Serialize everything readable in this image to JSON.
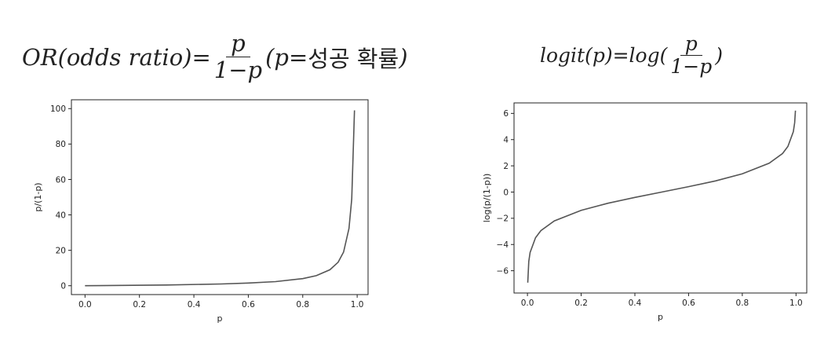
{
  "formulas": {
    "left": {
      "lhs": "OR(odds ratio)=",
      "num": "p",
      "den": "1−p",
      "tail_open": "(p=",
      "tail_kr": "성공 확률",
      "tail_close": ")"
    },
    "right": {
      "lhs": "logit(p)=log(",
      "num": "p",
      "den": "1−p",
      "tail_close": ")"
    }
  },
  "chart_data": [
    {
      "type": "line",
      "title": "",
      "xlabel": "p",
      "ylabel": "p/(1-p)",
      "xlim": [
        -0.05,
        1.04
      ],
      "ylim": [
        -5,
        105
      ],
      "xticks": [
        0.0,
        0.2,
        0.4,
        0.6,
        0.8,
        1.0
      ],
      "xtick_labels": [
        "0.0",
        "0.2",
        "0.4",
        "0.6",
        "0.8",
        "1.0"
      ],
      "yticks": [
        0,
        20,
        40,
        60,
        80,
        100
      ],
      "ytick_labels": [
        "0",
        "20",
        "40",
        "60",
        "80",
        "100"
      ],
      "grid": false,
      "color": "#555555",
      "series": [
        {
          "x": [
            0.0,
            0.3,
            0.5,
            0.6,
            0.7,
            0.8,
            0.85,
            0.9,
            0.93,
            0.95,
            0.97,
            0.98,
            0.99
          ],
          "y": [
            0.0,
            0.43,
            1.0,
            1.5,
            2.33,
            4.0,
            5.67,
            9.0,
            13.29,
            19.0,
            32.33,
            49.0,
            99.0
          ]
        }
      ]
    },
    {
      "type": "line",
      "title": "",
      "xlabel": "p",
      "ylabel": "log(p/(1-p))",
      "xlim": [
        -0.05,
        1.04
      ],
      "ylim": [
        -7.7,
        6.8
      ],
      "xticks": [
        0.0,
        0.2,
        0.4,
        0.6,
        0.8,
        1.0
      ],
      "xtick_labels": [
        "0.0",
        "0.2",
        "0.4",
        "0.6",
        "0.8",
        "1.0"
      ],
      "yticks": [
        -6,
        -4,
        -2,
        0,
        2,
        4,
        6
      ],
      "ytick_labels": [
        "−6",
        "−4",
        "−2",
        "0",
        "2",
        "4",
        "6"
      ],
      "grid": false,
      "color": "#555555",
      "series": [
        {
          "x": [
            0.001,
            0.005,
            0.01,
            0.03,
            0.05,
            0.1,
            0.2,
            0.3,
            0.4,
            0.5,
            0.6,
            0.7,
            0.8,
            0.9,
            0.95,
            0.97,
            0.99,
            0.995,
            0.998
          ],
          "y": [
            -6.91,
            -5.29,
            -4.6,
            -3.48,
            -2.94,
            -2.2,
            -1.39,
            -0.85,
            -0.41,
            0.0,
            0.41,
            0.85,
            1.39,
            2.2,
            2.94,
            3.48,
            4.6,
            5.29,
            6.21
          ]
        }
      ]
    }
  ]
}
